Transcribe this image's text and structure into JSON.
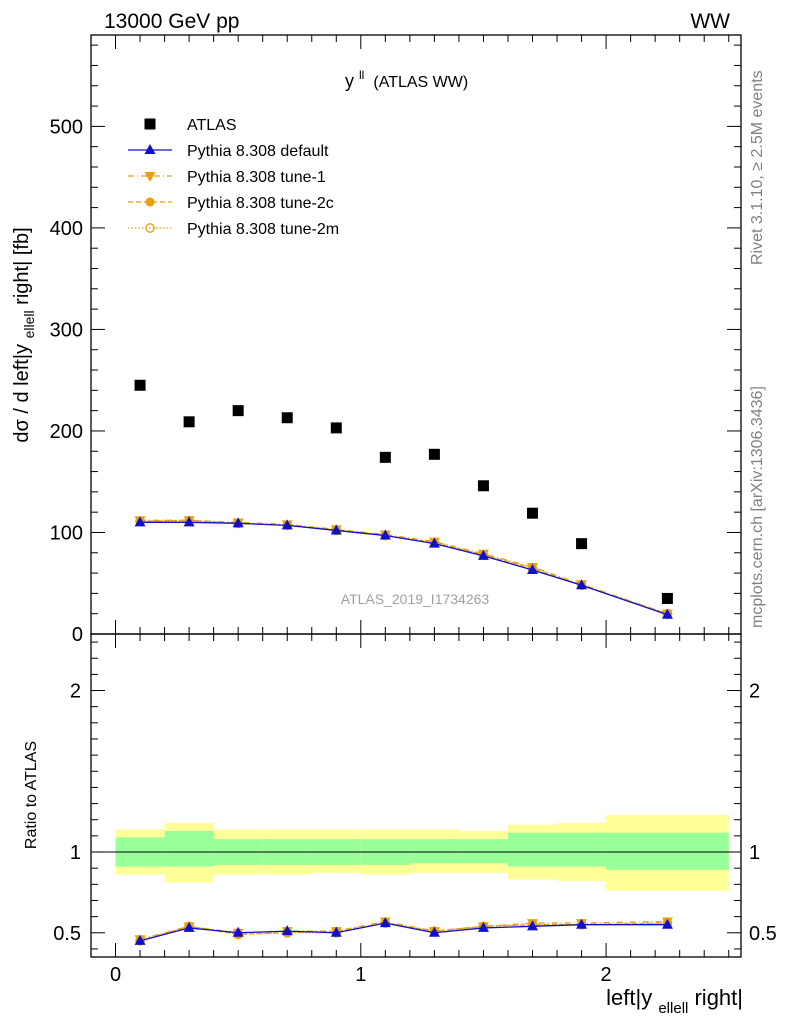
{
  "header": {
    "energy_label": "13000 GeV pp",
    "process_label": "WW"
  },
  "side_labels": {
    "rivet": "Rivet 3.1.10, ≥ 2.5M events",
    "mcplots": "mcplots.cern.ch [arXiv:1306.3436]"
  },
  "watermark": "ATLAS_2019_I1734263",
  "colors": {
    "atlas": "#000000",
    "default": "#1010c8",
    "tunes": "#e8a010",
    "band_inner": "#99ff99",
    "band_outer": "#ffff99"
  },
  "chart_data": [
    {
      "type": "scatter",
      "title_main": "y",
      "title_sup": "ll",
      "title_rest": "(ATLAS WW)",
      "ylabel_main": "dσ / d left|y",
      "ylabel_sub": "ellell",
      "ylabel_tail": "right| [fb]",
      "xlim": [
        -0.1,
        2.55
      ],
      "ylim": [
        0,
        590
      ],
      "yticks": [
        0,
        100,
        200,
        300,
        400,
        500
      ],
      "ytick_labels": [
        "0",
        "100",
        "200",
        "300",
        "400",
        "500"
      ],
      "legend_placement": "top-left",
      "x": [
        0.1,
        0.3,
        0.5,
        0.7,
        0.9,
        1.1,
        1.3,
        1.5,
        1.7,
        1.9,
        2.25
      ],
      "series": [
        {
          "name": "ATLAS",
          "marker": "square",
          "line": "none",
          "values": [
            245,
            209,
            220,
            213,
            203,
            174,
            177,
            146,
            119,
            89,
            35
          ]
        },
        {
          "name": "Pythia 8.308 default",
          "marker": "triangle-up",
          "line": "solid",
          "values": [
            110,
            110,
            109,
            107,
            102,
            97,
            89,
            77,
            63,
            48,
            19
          ]
        },
        {
          "name": "Pythia 8.308 tune-1",
          "marker": "triangle-down",
          "line": "dashdot",
          "values": [
            112,
            112,
            110,
            108,
            103,
            98,
            91,
            79,
            66,
            49,
            20
          ]
        },
        {
          "name": "Pythia 8.308 tune-2c",
          "marker": "circle",
          "line": "dashed",
          "values": [
            111,
            112,
            109,
            107,
            103,
            97,
            90,
            78,
            65,
            48,
            20
          ]
        },
        {
          "name": "Pythia 8.308 tune-2m",
          "marker": "circle-open",
          "line": "dotted",
          "values": [
            111,
            111,
            109,
            107,
            102,
            97,
            90,
            78,
            64,
            48,
            20
          ]
        }
      ]
    },
    {
      "type": "line",
      "ylabel": "Ratio to ATLAS",
      "xlabel_main": "left|y",
      "xlabel_sub": "ellell",
      "xlabel_tail": "right|",
      "xlim": [
        -0.1,
        2.55
      ],
      "ylim": [
        0.35,
        2.35
      ],
      "xticks": [
        0,
        1,
        2
      ],
      "xtick_labels": [
        "0",
        "1",
        "2"
      ],
      "yticks": [
        0.5,
        1,
        2
      ],
      "ytick_labels": [
        "0.5",
        "1",
        "2"
      ],
      "x": [
        0.1,
        0.3,
        0.5,
        0.7,
        0.9,
        1.1,
        1.3,
        1.5,
        1.7,
        1.9,
        2.25
      ],
      "bins": [
        [
          0.0,
          0.2
        ],
        [
          0.2,
          0.4
        ],
        [
          0.4,
          0.6
        ],
        [
          0.6,
          0.8
        ],
        [
          0.8,
          1.0
        ],
        [
          1.0,
          1.2
        ],
        [
          1.2,
          1.4
        ],
        [
          1.4,
          1.6
        ],
        [
          1.6,
          1.8
        ],
        [
          1.8,
          2.0
        ],
        [
          2.0,
          2.5
        ]
      ],
      "band_inner": [
        [
          0.91,
          1.09
        ],
        [
          0.91,
          1.13
        ],
        [
          0.92,
          1.08
        ],
        [
          0.92,
          1.08
        ],
        [
          0.92,
          1.08
        ],
        [
          0.92,
          1.08
        ],
        [
          0.93,
          1.08
        ],
        [
          0.93,
          1.08
        ],
        [
          0.91,
          1.12
        ],
        [
          0.91,
          1.12
        ],
        [
          0.89,
          1.12
        ]
      ],
      "band_outer": [
        [
          0.86,
          1.14
        ],
        [
          0.81,
          1.18
        ],
        [
          0.86,
          1.14
        ],
        [
          0.86,
          1.14
        ],
        [
          0.87,
          1.14
        ],
        [
          0.86,
          1.14
        ],
        [
          0.87,
          1.14
        ],
        [
          0.87,
          1.13
        ],
        [
          0.83,
          1.17
        ],
        [
          0.82,
          1.18
        ],
        [
          0.76,
          1.23
        ]
      ],
      "series": [
        {
          "name": "Pythia 8.308 default",
          "values": [
            0.45,
            0.53,
            0.5,
            0.51,
            0.5,
            0.56,
            0.5,
            0.53,
            0.54,
            0.55,
            0.55
          ]
        },
        {
          "name": "Pythia 8.308 tune-1",
          "values": [
            0.46,
            0.54,
            0.5,
            0.51,
            0.51,
            0.57,
            0.51,
            0.54,
            0.56,
            0.56,
            0.57
          ]
        },
        {
          "name": "Pythia 8.308 tune-2c",
          "values": [
            0.45,
            0.54,
            0.49,
            0.5,
            0.51,
            0.56,
            0.51,
            0.54,
            0.55,
            0.55,
            0.56
          ]
        },
        {
          "name": "Pythia 8.308 tune-2m",
          "values": [
            0.45,
            0.54,
            0.49,
            0.5,
            0.5,
            0.56,
            0.51,
            0.54,
            0.55,
            0.55,
            0.56
          ]
        }
      ]
    }
  ]
}
